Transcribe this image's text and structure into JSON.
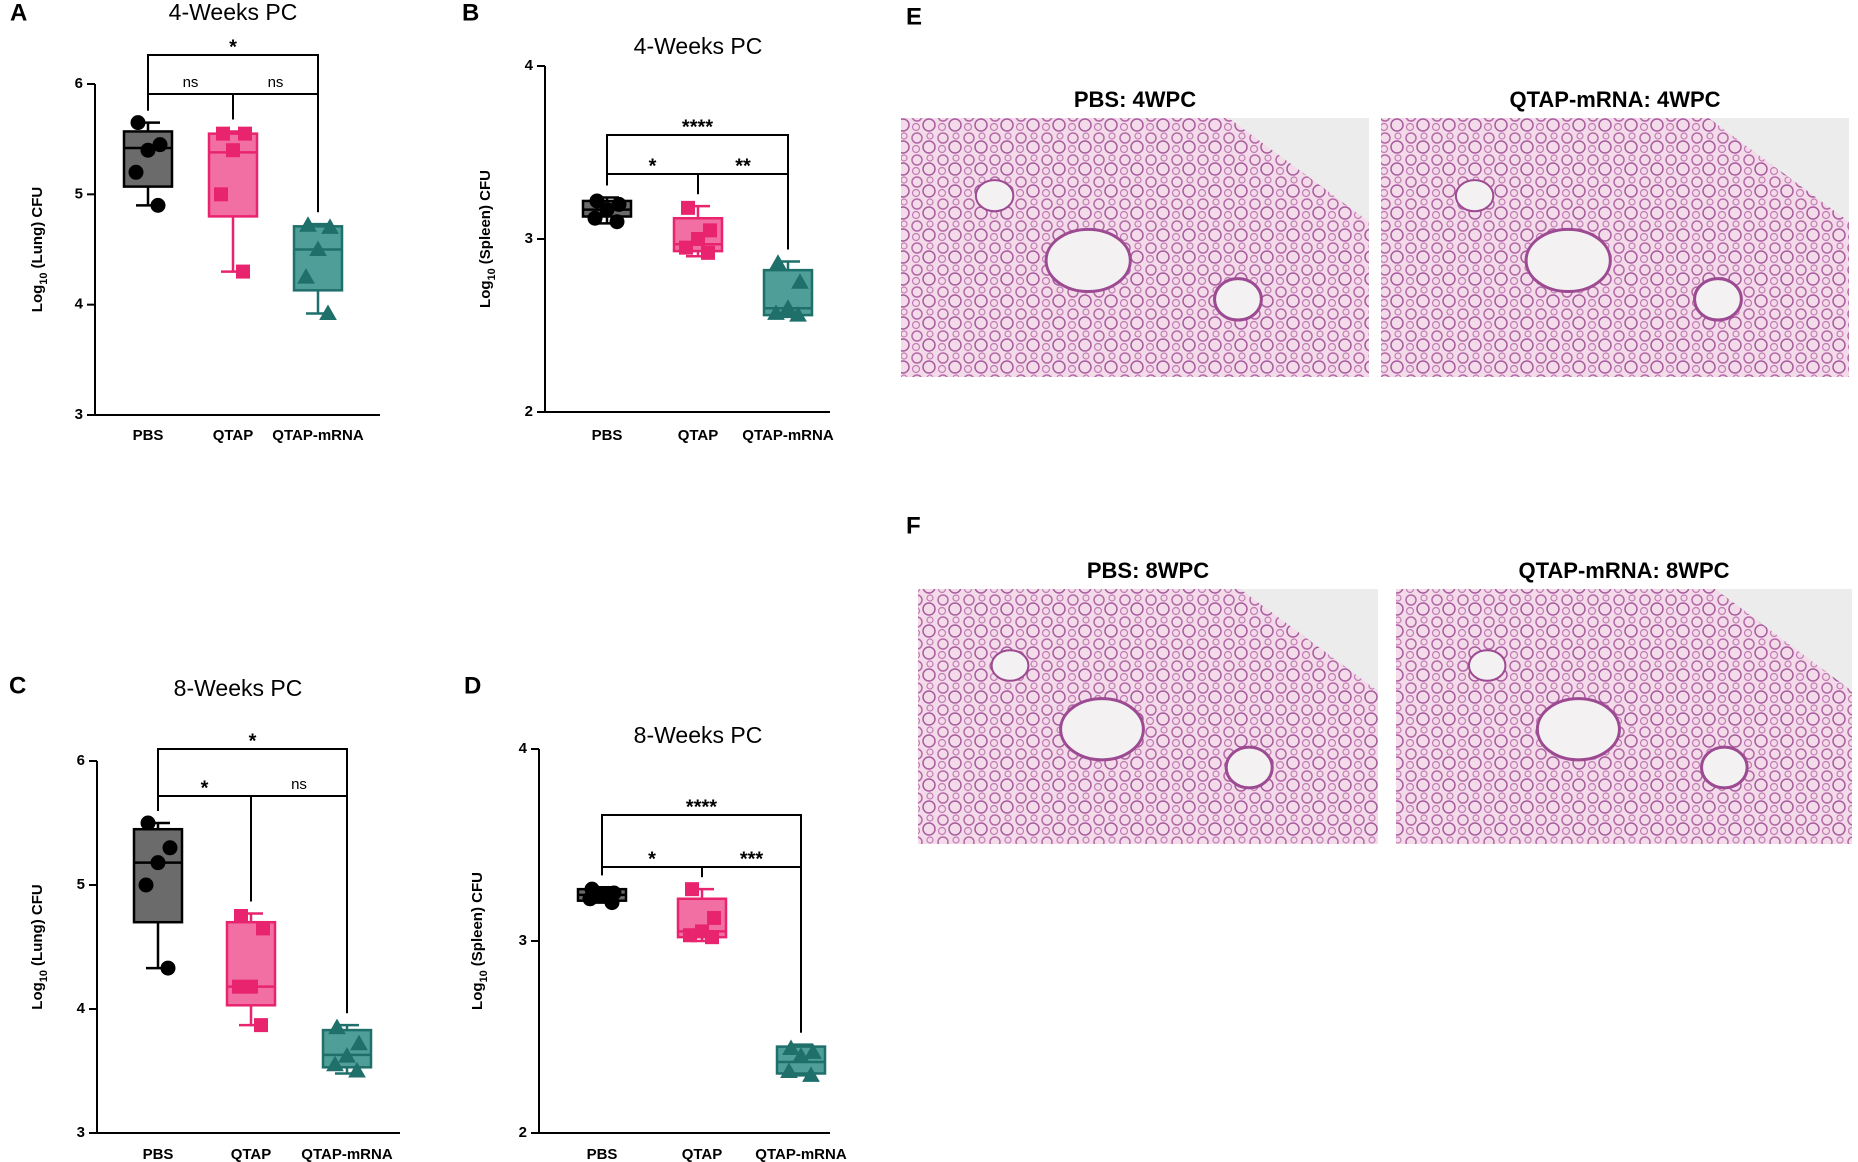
{
  "chart_data": [
    {
      "type": "box",
      "panel": "A",
      "title": "4-Weeks PC",
      "ylabel": [
        "Log",
        "10",
        "(Lung) CFU"
      ],
      "ylim": [
        3,
        6
      ],
      "yticks": [
        3,
        4,
        5,
        6
      ],
      "series": [
        {
          "name": "PBS",
          "color": "#000000",
          "fill": "#6b6b6b",
          "marker": "circle",
          "values": [
            5.65,
            5.45,
            5.4,
            5.2,
            4.9
          ],
          "box": {
            "min": 4.9,
            "q1": 5.07,
            "median": 5.42,
            "q3": 5.57,
            "max": 5.65
          }
        },
        {
          "name": "QTAP",
          "color": "#e8246e",
          "fill": "#f26fa3",
          "marker": "square",
          "values": [
            5.55,
            5.55,
            5.4,
            5.0,
            4.3
          ],
          "box": {
            "min": 4.3,
            "q1": 4.8,
            "median": 5.38,
            "q3": 5.55,
            "max": 5.57
          }
        },
        {
          "name": "QTAP-mRNA",
          "color": "#1f6f6b",
          "fill": "#4f9e98",
          "marker": "triangle",
          "values": [
            4.72,
            4.7,
            4.5,
            4.25,
            3.92
          ],
          "box": {
            "min": 3.92,
            "q1": 4.13,
            "median": 4.5,
            "q3": 4.71,
            "max": 4.73
          }
        }
      ],
      "comparisons": [
        {
          "groups": [
            "PBS",
            "QTAP"
          ],
          "label": "ns"
        },
        {
          "groups": [
            "QTAP",
            "QTAP-mRNA"
          ],
          "label": "ns"
        },
        {
          "groups": [
            "PBS",
            "QTAP-mRNA"
          ],
          "label": "*"
        }
      ]
    },
    {
      "type": "box",
      "panel": "B",
      "title": "4-Weeks PC",
      "ylabel": [
        "Log",
        "10",
        "(Spleen) CFU"
      ],
      "ylim": [
        2,
        4
      ],
      "yticks": [
        2,
        3,
        4
      ],
      "series": [
        {
          "name": "PBS",
          "color": "#000000",
          "fill": "#6b6b6b",
          "marker": "circle",
          "values": [
            3.22,
            3.2,
            3.17,
            3.12,
            3.1
          ],
          "box": {
            "min": 3.09,
            "q1": 3.13,
            "median": 3.17,
            "q3": 3.22,
            "max": 3.24
          }
        },
        {
          "name": "QTAP",
          "color": "#e8246e",
          "fill": "#f26fa3",
          "marker": "square",
          "values": [
            3.18,
            3.05,
            3.0,
            2.95,
            2.92
          ],
          "box": {
            "min": 2.9,
            "q1": 2.93,
            "median": 2.97,
            "q3": 3.12,
            "max": 3.19
          }
        },
        {
          "name": "QTAP-mRNA",
          "color": "#1f6f6b",
          "fill": "#4f9e98",
          "marker": "triangle",
          "values": [
            2.86,
            2.75,
            2.6,
            2.57,
            2.56
          ],
          "box": {
            "min": 2.55,
            "q1": 2.56,
            "median": 2.6,
            "q3": 2.82,
            "max": 2.87
          }
        }
      ],
      "comparisons": [
        {
          "groups": [
            "PBS",
            "QTAP"
          ],
          "label": "*"
        },
        {
          "groups": [
            "QTAP",
            "QTAP-mRNA"
          ],
          "label": "**"
        },
        {
          "groups": [
            "PBS",
            "QTAP-mRNA"
          ],
          "label": "****"
        }
      ]
    },
    {
      "type": "box",
      "panel": "C",
      "title": "8-Weeks PC",
      "ylabel": [
        "Log",
        "10",
        "(Lung) CFU"
      ],
      "ylim": [
        3,
        6
      ],
      "yticks": [
        3,
        4,
        5,
        6
      ],
      "series": [
        {
          "name": "PBS",
          "color": "#000000",
          "fill": "#6b6b6b",
          "marker": "circle",
          "values": [
            5.5,
            5.3,
            5.18,
            5.0,
            4.33
          ],
          "box": {
            "min": 4.33,
            "q1": 4.7,
            "median": 5.18,
            "q3": 5.45,
            "max": 5.5
          }
        },
        {
          "name": "QTAP",
          "color": "#e8246e",
          "fill": "#f26fa3",
          "marker": "square",
          "values": [
            4.75,
            4.65,
            4.18,
            4.18,
            3.87
          ],
          "box": {
            "min": 3.87,
            "q1": 4.03,
            "median": 4.18,
            "q3": 4.7,
            "max": 4.77
          }
        },
        {
          "name": "QTAP-mRNA",
          "color": "#1f6f6b",
          "fill": "#4f9e98",
          "marker": "triangle",
          "values": [
            3.85,
            3.72,
            3.62,
            3.55,
            3.5
          ],
          "box": {
            "min": 3.48,
            "q1": 3.53,
            "median": 3.63,
            "q3": 3.83,
            "max": 3.87
          }
        }
      ],
      "comparisons": [
        {
          "groups": [
            "PBS",
            "QTAP-mRNA"
          ],
          "label": "*"
        },
        {
          "groups": [
            "PBS",
            "QTAP"
          ],
          "label": "*"
        },
        {
          "groups": [
            "QTAP",
            "QTAP-mRNA"
          ],
          "label": "ns"
        }
      ]
    },
    {
      "type": "box",
      "panel": "D",
      "title": "8-Weeks PC",
      "ylabel": [
        "Log",
        "10",
        "(Spleen) CFU"
      ],
      "ylim": [
        2,
        4
      ],
      "yticks": [
        2,
        3,
        4
      ],
      "series": [
        {
          "name": "PBS",
          "color": "#000000",
          "fill": "#6b6b6b",
          "marker": "circle",
          "values": [
            3.27,
            3.25,
            3.24,
            3.22,
            3.2
          ],
          "box": {
            "min": 3.2,
            "q1": 3.21,
            "median": 3.24,
            "q3": 3.27,
            "max": 3.28
          }
        },
        {
          "name": "QTAP",
          "color": "#e8246e",
          "fill": "#f26fa3",
          "marker": "square",
          "values": [
            3.27,
            3.12,
            3.05,
            3.03,
            3.02
          ],
          "box": {
            "min": 3.0,
            "q1": 3.02,
            "median": 3.05,
            "q3": 3.22,
            "max": 3.27
          }
        },
        {
          "name": "QTAP-mRNA",
          "color": "#1f6f6b",
          "fill": "#4f9e98",
          "marker": "triangle",
          "values": [
            2.44,
            2.42,
            2.4,
            2.32,
            2.3
          ],
          "box": {
            "min": 2.3,
            "q1": 2.31,
            "median": 2.37,
            "q3": 2.45,
            "max": 2.46
          }
        }
      ],
      "comparisons": [
        {
          "groups": [
            "PBS",
            "QTAP-mRNA"
          ],
          "label": "****"
        },
        {
          "groups": [
            "PBS",
            "QTAP"
          ],
          "label": "*"
        },
        {
          "groups": [
            "QTAP",
            "QTAP-mRNA"
          ],
          "label": "***"
        }
      ]
    }
  ],
  "figures": [
    {
      "panel": "E",
      "images": [
        {
          "title": "PBS: 4WPC"
        },
        {
          "title": "QTAP-mRNA: 4WPC"
        }
      ]
    },
    {
      "panel": "F",
      "images": [
        {
          "title": "PBS: 8WPC"
        },
        {
          "title": "QTAP-mRNA: 8WPC"
        }
      ]
    }
  ]
}
